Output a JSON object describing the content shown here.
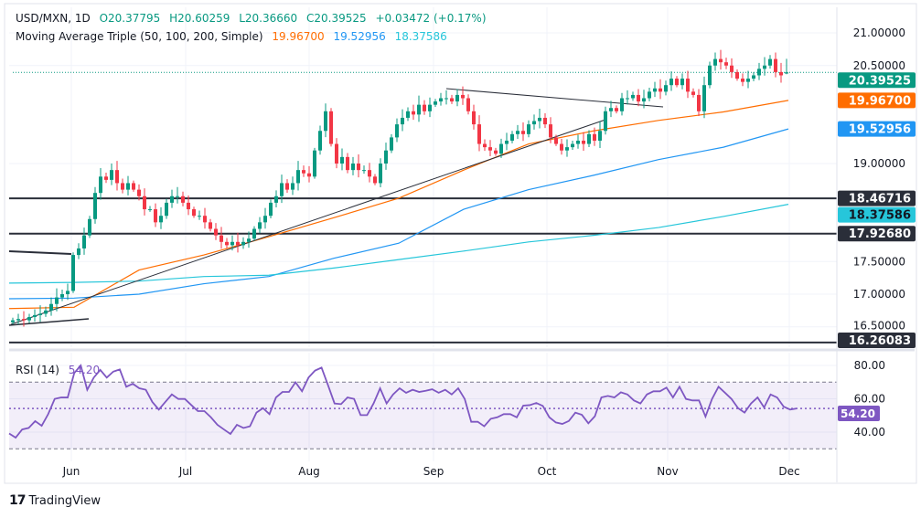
{
  "header": {
    "symbol": "USD/MXN, 1D",
    "open": "O20.37795",
    "high": "H20.60259",
    "low": "L20.36660",
    "close": "C20.39525",
    "change": "+0.03472 (+0.17%)"
  },
  "ma_legend": {
    "label": "Moving Average Triple (50, 100, 200, Simple)",
    "ma50": "19.96700",
    "ma100": "19.52956",
    "ma200": "18.37586"
  },
  "rsi_legend": {
    "label": "RSI (14)",
    "value": "54.20"
  },
  "footer": {
    "brand": "TradingView"
  },
  "colors": {
    "up": "#089981",
    "down": "#f23645",
    "ma50": "#ff6d00",
    "ma100": "#2196f3",
    "ma200": "#26c6da",
    "rsi": "#7e57c2",
    "level": "#2a2e39"
  },
  "chart_data": [
    {
      "type": "candlestick",
      "title": "USD/MXN, 1D",
      "x_ticks": [
        "Jun",
        "Jul",
        "Aug",
        "Sep",
        "Oct",
        "Nov",
        "Dec"
      ],
      "y_ticks": [
        "21.00000",
        "20.50000",
        "19.00000",
        "17.50000",
        "17.00000",
        "16.50000"
      ],
      "ylim": [
        16.15,
        21.2
      ],
      "price_labels": [
        {
          "value": 20.39525,
          "text": "20.39525",
          "kind": "last"
        },
        {
          "value": 19.967,
          "text": "19.96700",
          "kind": "ma50"
        },
        {
          "value": 19.52956,
          "text": "19.52956",
          "kind": "ma100"
        },
        {
          "value": 18.46716,
          "text": "18.46716",
          "kind": "level"
        },
        {
          "value": 18.37586,
          "text": "18.37586",
          "kind": "ma200"
        },
        {
          "value": 17.9268,
          "text": "17.92680",
          "kind": "level"
        },
        {
          "value": 16.26083,
          "text": "16.26083",
          "kind": "level"
        }
      ],
      "horizontal_levels": [
        18.46716,
        17.9268,
        16.26083
      ],
      "closes": [
        16.6,
        16.62,
        16.6,
        16.65,
        16.68,
        16.7,
        16.75,
        16.85,
        16.95,
        17.0,
        17.05,
        17.6,
        17.7,
        17.9,
        18.15,
        18.55,
        18.8,
        18.75,
        18.9,
        18.7,
        18.6,
        18.7,
        18.6,
        18.5,
        18.3,
        18.3,
        18.1,
        18.2,
        18.4,
        18.5,
        18.5,
        18.4,
        18.3,
        18.2,
        18.2,
        18.1,
        18.0,
        17.9,
        17.8,
        17.75,
        17.8,
        17.75,
        17.8,
        17.85,
        18.0,
        18.1,
        18.2,
        18.4,
        18.5,
        18.7,
        18.6,
        18.7,
        18.9,
        18.85,
        18.8,
        19.2,
        19.5,
        19.8,
        19.3,
        19.0,
        19.1,
        18.9,
        19.0,
        18.9,
        18.9,
        18.8,
        18.7,
        19.0,
        19.2,
        19.4,
        19.6,
        19.7,
        19.8,
        19.75,
        19.9,
        19.8,
        19.9,
        19.95,
        20.0,
        20.0,
        19.95,
        20.05,
        20.0,
        19.8,
        19.6,
        19.3,
        19.25,
        19.2,
        19.15,
        19.3,
        19.35,
        19.45,
        19.5,
        19.45,
        19.6,
        19.65,
        19.7,
        19.6,
        19.4,
        19.3,
        19.2,
        19.25,
        19.3,
        19.35,
        19.3,
        19.45,
        19.35,
        19.5,
        19.8,
        19.85,
        19.8,
        20.0,
        20.0,
        20.05,
        19.95,
        20.0,
        20.1,
        20.15,
        20.1,
        20.2,
        20.3,
        20.2,
        20.3,
        20.1,
        20.05,
        19.8,
        20.2,
        20.5,
        20.6,
        20.55,
        20.5,
        20.4,
        20.3,
        20.25,
        20.3,
        20.35,
        20.45,
        20.5,
        20.6,
        20.4,
        20.35,
        20.39525
      ],
      "last_candle": {
        "open": 20.37795,
        "high": 20.60259,
        "low": 20.3666,
        "close": 20.39525
      },
      "series": [
        {
          "name": "MA 50",
          "values": [
            16.78,
            16.8,
            17.37,
            17.6,
            17.88,
            18.17,
            18.47,
            18.9,
            19.3,
            19.5,
            19.66,
            19.79,
            19.967
          ]
        },
        {
          "name": "MA 100",
          "values": [
            16.93,
            16.94,
            17.0,
            17.16,
            17.27,
            17.55,
            17.78,
            18.3,
            18.6,
            18.82,
            19.06,
            19.25,
            19.52956
          ]
        },
        {
          "name": "MA 200",
          "values": [
            17.17,
            17.18,
            17.2,
            17.27,
            17.29,
            17.4,
            17.53,
            17.66,
            17.8,
            17.9,
            18.02,
            18.19,
            18.37586
          ]
        }
      ]
    },
    {
      "type": "line",
      "title": "RSI (14)",
      "y_ticks": [
        "80.00",
        "60.00",
        "40.00"
      ],
      "ylim": [
        25,
        85
      ],
      "bands": [
        70,
        30
      ],
      "current": 54.2,
      "values": [
        39.2,
        36.7,
        41.6,
        42.5,
        46.6,
        43.8,
        50.8,
        59.9,
        60.8,
        60.8,
        75.4,
        80.0,
        65.4,
        72.7,
        77.3,
        72.7,
        76.3,
        77.6,
        67.2,
        69.0,
        66.3,
        65.4,
        58.1,
        53.5,
        58.1,
        62.6,
        59.9,
        59.9,
        56.2,
        52.6,
        52.6,
        48.9,
        44.4,
        41.6,
        38.9,
        44.4,
        42.5,
        43.5,
        51.7,
        54.4,
        50.8,
        60.8,
        64.1,
        64.1,
        69.9,
        64.5,
        72.7,
        76.9,
        78.7,
        68.1,
        57.2,
        56.8,
        60.8,
        59.9,
        50.2,
        50.2,
        57.2,
        66.3,
        57.2,
        62.6,
        66.3,
        63.6,
        65.4,
        64.1,
        64.8,
        65.7,
        63.6,
        65.4,
        62.6,
        66.3,
        59.9,
        46.2,
        46.2,
        43.5,
        48.0,
        48.9,
        50.8,
        50.8,
        48.9,
        55.9,
        56.2,
        57.5,
        55.7,
        48.9,
        45.8,
        44.9,
        46.7,
        51.7,
        50.4,
        45.3,
        49.5,
        60.8,
        61.7,
        60.8,
        63.9,
        62.6,
        59.0,
        57.2,
        62.6,
        64.5,
        64.5,
        66.7,
        60.8,
        67.2,
        59.9,
        59.0,
        59.0,
        49.3,
        59.9,
        67.2,
        63.6,
        59.9,
        54.4,
        51.7,
        57.2,
        60.8,
        54.8,
        62.6,
        60.8,
        55.3,
        53.5,
        54.2
      ]
    }
  ]
}
